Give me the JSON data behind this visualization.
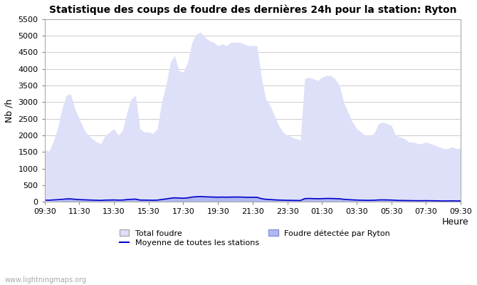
{
  "title": "Statistique des coups de foudre des dernières 24h pour la station: Ryton",
  "xlabel": "Heure",
  "ylabel": "Nb /h",
  "ylim": [
    0,
    5500
  ],
  "yticks": [
    0,
    500,
    1000,
    1500,
    2000,
    2500,
    3000,
    3500,
    4000,
    4500,
    5000,
    5500
  ],
  "x_labels": [
    "09:30",
    "11:30",
    "13:30",
    "15:30",
    "17:30",
    "19:30",
    "21:30",
    "23:30",
    "01:30",
    "03:30",
    "05:30",
    "07:30",
    "09:30"
  ],
  "watermark": "www.lightningmaps.org",
  "bg_color": "#ffffff",
  "plot_bg_color": "#ffffff",
  "grid_color": "#cccccc",
  "total_fill_color": "#dde0f8",
  "total_fill_edge": "#c8ccf0",
  "ryton_fill_color": "#b0b8f0",
  "ryton_fill_edge": "#8890e0",
  "mean_line_color": "#0000cc",
  "legend_total_color": "#dde0f8",
  "legend_ryton_color": "#b0b8f0",
  "n_points": 97,
  "total_values": [
    1580,
    1520,
    1800,
    2200,
    2800,
    3200,
    3250,
    2800,
    2500,
    2200,
    2000,
    1900,
    1800,
    1750,
    2000,
    2100,
    2200,
    2000,
    2150,
    2700,
    3100,
    3200,
    2200,
    2100,
    2100,
    2050,
    2200,
    3000,
    3500,
    4200,
    4400,
    3950,
    3900,
    4200,
    4800,
    5050,
    5100,
    4950,
    4850,
    4800,
    4700,
    4750,
    4700,
    4800,
    4800,
    4800,
    4750,
    4700,
    4700,
    4700,
    3750,
    3100,
    2900,
    2600,
    2300,
    2100,
    2000,
    1950,
    1900,
    1850,
    3700,
    3750,
    3700,
    3650,
    3750,
    3800,
    3800,
    3700,
    3500,
    3000,
    2700,
    2400,
    2200,
    2100,
    2000,
    2000,
    2050,
    2350,
    2400,
    2350,
    2300,
    2000,
    1950,
    1900,
    1800,
    1800,
    1750,
    1750,
    1800,
    1750,
    1700,
    1650,
    1600,
    1600,
    1650,
    1600,
    1600
  ],
  "ryton_values": [
    20,
    15,
    30,
    40,
    50,
    80,
    90,
    70,
    60,
    55,
    50,
    45,
    40,
    35,
    45,
    50,
    55,
    50,
    52,
    65,
    80,
    90,
    55,
    50,
    48,
    45,
    50,
    70,
    90,
    110,
    130,
    120,
    115,
    130,
    155,
    165,
    175,
    165,
    160,
    155,
    150,
    155,
    150,
    155,
    155,
    155,
    150,
    145,
    145,
    145,
    100,
    80,
    70,
    60,
    55,
    50,
    45,
    42,
    40,
    38,
    100,
    105,
    100,
    98,
    100,
    105,
    105,
    100,
    95,
    80,
    70,
    60,
    55,
    50,
    45,
    45,
    48,
    58,
    60,
    58,
    55,
    45,
    42,
    40,
    38,
    35,
    32,
    32,
    35,
    32,
    30,
    28,
    25,
    25,
    28,
    25,
    25
  ],
  "mean_values": [
    50,
    45,
    55,
    62,
    72,
    85,
    88,
    75,
    65,
    60,
    55,
    50,
    45,
    42,
    50,
    52,
    55,
    50,
    52,
    65,
    75,
    80,
    52,
    50,
    48,
    45,
    50,
    68,
    85,
    105,
    120,
    112,
    108,
    118,
    142,
    152,
    158,
    150,
    145,
    142,
    138,
    142,
    138,
    142,
    142,
    142,
    138,
    135,
    135,
    135,
    95,
    75,
    68,
    58,
    52,
    48,
    44,
    42,
    40,
    38,
    95,
    100,
    95,
    92,
    95,
    100,
    100,
    95,
    90,
    75,
    65,
    58,
    52,
    48,
    44,
    44,
    46,
    55,
    58,
    55,
    52,
    44,
    40,
    38,
    36,
    34,
    32,
    32,
    34,
    32,
    30,
    28,
    25,
    25,
    28,
    25,
    25
  ]
}
